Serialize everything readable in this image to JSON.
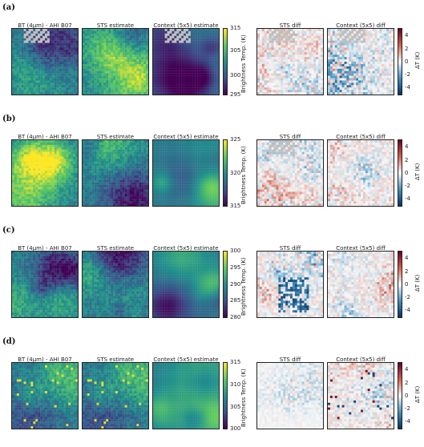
{
  "rows": [
    {
      "label": "(a)",
      "titles": [
        "BT (4µm) - AHI B07",
        "STS estimate",
        "Context (5x5) estimate",
        "STS diff",
        "Context (5x5) diff"
      ],
      "temp_cbar": {
        "title": "Brightness Temp. (K)",
        "ticks": [
          "315",
          "305",
          "300",
          "295"
        ]
      },
      "diff_cbar": {
        "title": "ΔT (K)",
        "ticks": [
          "4",
          "2",
          "0",
          "-2",
          "-4"
        ]
      }
    },
    {
      "label": "(b)",
      "titles": [
        "BT (4µm) - AHI B07",
        "STS estimate",
        "Context (5x5) estimate",
        "STS diff",
        "Context (5x5) diff"
      ],
      "temp_cbar": {
        "title": "Brightness Temp. (K)",
        "ticks": [
          "325",
          "320",
          "315"
        ]
      },
      "diff_cbar": {
        "title": "ΔT (K)",
        "ticks": [
          "4",
          "2",
          "0",
          "-2",
          "-4"
        ]
      }
    },
    {
      "label": "(c)",
      "titles": [
        "BT (4µm) - AHI B07",
        "STS estimate",
        "Context (5x5) estimate",
        "STS diff",
        "Context (5x5) diff"
      ],
      "temp_cbar": {
        "title": "Brightness Temp. (K)",
        "ticks": [
          "300",
          "295",
          "290",
          "285",
          "280"
        ]
      },
      "diff_cbar": {
        "title": "ΔT (K)",
        "ticks": [
          "4",
          "2",
          "0",
          "-2",
          "-4"
        ]
      }
    },
    {
      "label": "(d)",
      "titles": [
        "BT (4µm) - AHI B07",
        "STS estimate",
        "Context (5x5) estimate",
        "STS diff",
        "Context (5x5) diff"
      ],
      "temp_cbar": {
        "title": "Brightness Temp. (K)",
        "ticks": [
          "315",
          "310",
          "305",
          "300"
        ]
      },
      "diff_cbar": {
        "title": "ΔT (K)",
        "ticks": [
          "4",
          "2",
          "0",
          "-2",
          "-4"
        ]
      }
    }
  ],
  "colors": {
    "viridis": [
      "#440154",
      "#3b528b",
      "#21908d",
      "#5dc963",
      "#fde725"
    ],
    "rdbu_r": [
      "#053061",
      "#4393c3",
      "#f7f7f7",
      "#d6604d",
      "#67001f"
    ],
    "no_data": "#bebebe"
  }
}
